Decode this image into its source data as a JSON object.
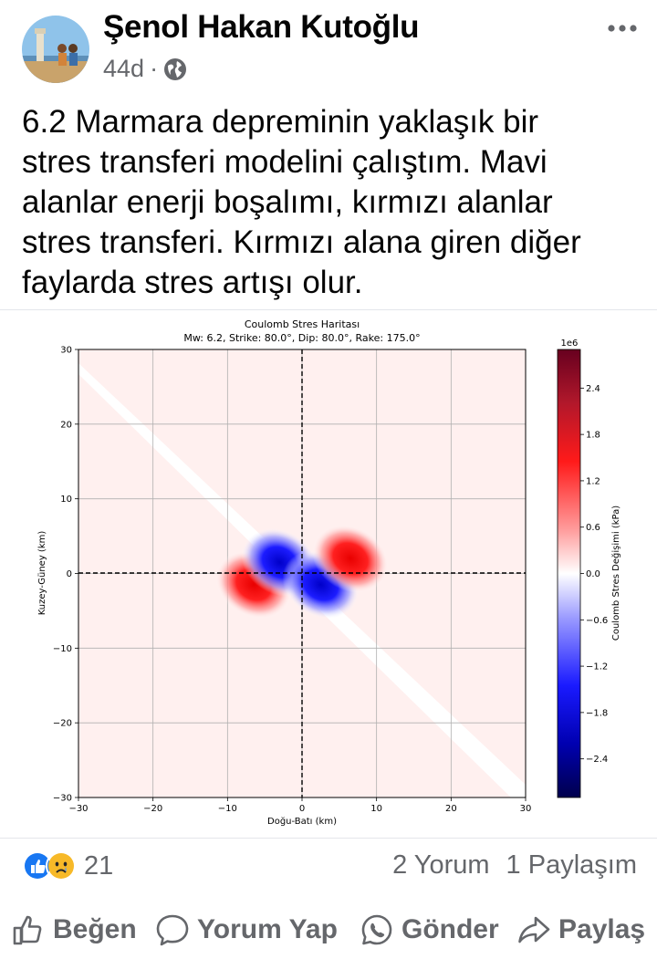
{
  "post": {
    "author": "Şenol Hakan Kutoğlu",
    "time": "44d",
    "text_lines": [
      "6.2 Marmara depreminin yaklaşık bir",
      "stres transferi modelini çalıştım. Mavi",
      "alanlar enerji boşalımı, kırmızı alanlar",
      "stres transferi. Kırmızı alana giren diğer",
      "faylarda stres artışı olur."
    ]
  },
  "chart_data": {
    "type": "heatmap",
    "title": "Coulomb Stres Haritası",
    "subtitle": "Mw: 6.2, Strike: 80.0°, Dip: 80.0°, Rake: 175.0°",
    "xlabel": "Doğu-Batı (km)",
    "ylabel": "Kuzey-Güney (km)",
    "xlim": [
      -30,
      30
    ],
    "ylim": [
      -30,
      30
    ],
    "x_ticks": [
      "−30",
      "−20",
      "−10",
      "0",
      "10",
      "20",
      "30"
    ],
    "y_ticks": [
      "30",
      "20",
      "10",
      "0",
      "−10",
      "−20",
      "−30"
    ],
    "grid": true,
    "colorbar": {
      "label": "Coulomb Stres Değişimi (kPa)",
      "multiplier": "1e6",
      "ticks": [
        "2.4",
        "1.8",
        "1.2",
        "0.6",
        "0.0",
        "−0.6",
        "−1.2",
        "−1.8",
        "−2.4"
      ],
      "tick_values": [
        2.4,
        1.8,
        1.2,
        0.6,
        0.0,
        -0.6,
        -1.2,
        -1.8,
        -2.4
      ],
      "range": [
        -2.9,
        2.9
      ],
      "colormap": "seismic"
    },
    "lobes": [
      {
        "x": -6.5,
        "y": -1.5,
        "sign": "positive"
      },
      {
        "x": -3.0,
        "y": 1.5,
        "sign": "negative"
      },
      {
        "x": 2.5,
        "y": -1.5,
        "sign": "negative"
      },
      {
        "x": 6.5,
        "y": 2.0,
        "sign": "positive"
      }
    ]
  },
  "stats": {
    "reaction_count": "21",
    "comments": "2 Yorum",
    "shares": "1 Paylaşım"
  },
  "actions": {
    "like": "Beğen",
    "comment": "Yorum Yap",
    "send": "Gönder",
    "share": "Paylaş"
  },
  "colors": {
    "like_blue": "#1877f2",
    "haha_yellow": "#f7b928",
    "text_secondary": "#65676b"
  }
}
